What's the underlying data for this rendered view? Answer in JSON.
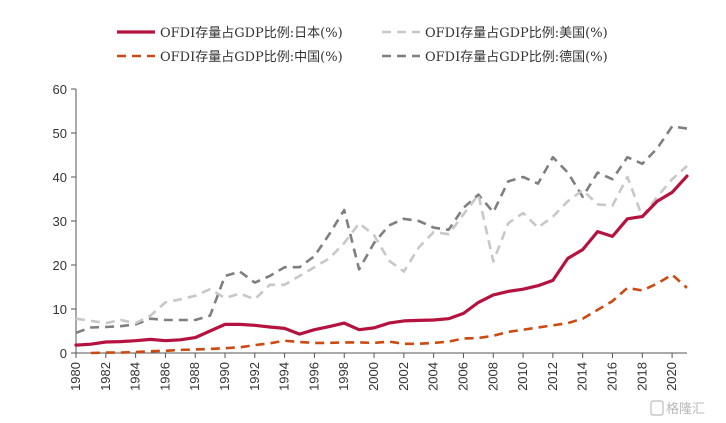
{
  "chart_data": {
    "type": "line",
    "title": "",
    "xlabel": "",
    "ylabel": "",
    "ylim": [
      0,
      60
    ],
    "yticks": [
      0,
      10,
      20,
      30,
      40,
      50,
      60
    ],
    "xlim": [
      1980,
      2021
    ],
    "xticks": [
      "1980",
      "1982",
      "1984",
      "1986",
      "1988",
      "1990",
      "1992",
      "1994",
      "1996",
      "1998",
      "2000",
      "2002",
      "2004",
      "2006",
      "2008",
      "2010",
      "2012",
      "2014",
      "2016",
      "2018",
      "2020"
    ],
    "grid": false,
    "legend_position": "top",
    "series": [
      {
        "name": "OFDI存量占GDP比例:日本(%)",
        "color": "#b5123f",
        "style": "solid",
        "x": [
          1980,
          1981,
          1982,
          1983,
          1984,
          1985,
          1986,
          1987,
          1988,
          1989,
          1990,
          1991,
          1992,
          1993,
          1994,
          1995,
          1996,
          1997,
          1998,
          1999,
          2000,
          2001,
          2002,
          2003,
          2004,
          2005,
          2006,
          2007,
          2008,
          2009,
          2010,
          2011,
          2012,
          2013,
          2014,
          2015,
          2016,
          2017,
          2018,
          2019,
          2020,
          2021
        ],
        "values": [
          1.8,
          2.0,
          2.5,
          2.6,
          2.8,
          3.1,
          2.8,
          3.0,
          3.5,
          5.0,
          6.5,
          6.5,
          6.3,
          5.9,
          5.6,
          4.3,
          5.3,
          6.0,
          6.8,
          5.3,
          5.7,
          6.8,
          7.3,
          7.4,
          7.5,
          7.8,
          9.0,
          11.5,
          13.2,
          14.0,
          14.5,
          15.3,
          16.5,
          21.5,
          23.5,
          27.6,
          26.5,
          30.5,
          31.0,
          34.5,
          36.5,
          40.2
        ]
      },
      {
        "name": "OFDI存量占GDP比例:美国(%)",
        "color": "#c8c8c8",
        "style": "dashed",
        "x": [
          1980,
          1981,
          1982,
          1983,
          1984,
          1985,
          1986,
          1987,
          1988,
          1989,
          1990,
          1991,
          1992,
          1993,
          1994,
          1995,
          1996,
          1997,
          1998,
          1999,
          2000,
          2001,
          2002,
          2003,
          2004,
          2005,
          2006,
          2007,
          2008,
          2009,
          2010,
          2011,
          2012,
          2013,
          2014,
          2015,
          2016,
          2017,
          2018,
          2019,
          2020,
          2021
        ],
        "values": [
          7.8,
          7.3,
          6.8,
          7.5,
          6.8,
          8.5,
          11.5,
          12.2,
          13.0,
          14.5,
          12.5,
          13.5,
          12.2,
          15.5,
          15.5,
          17.5,
          19.5,
          21.5,
          25.0,
          29.5,
          26.8,
          21.0,
          18.5,
          24.0,
          27.5,
          27.0,
          31.5,
          36.0,
          20.8,
          29.5,
          31.8,
          28.5,
          31.0,
          34.5,
          37.0,
          33.8,
          33.5,
          40.0,
          31.0,
          35.5,
          39.5,
          42.5
        ]
      },
      {
        "name": "OFDI存量占GDP比例:中国(%)",
        "color": "#cc4a12",
        "style": "dashed",
        "x": [
          1981,
          1982,
          1983,
          1984,
          1985,
          1986,
          1987,
          1988,
          1989,
          1990,
          1991,
          1992,
          1993,
          1994,
          1995,
          1996,
          1997,
          1998,
          1999,
          2000,
          2001,
          2002,
          2003,
          2004,
          2005,
          2006,
          2007,
          2008,
          2009,
          2010,
          2011,
          2012,
          2013,
          2014,
          2015,
          2016,
          2017,
          2018,
          2019,
          2020,
          2021
        ],
        "values": [
          0.0,
          0.1,
          0.1,
          0.2,
          0.4,
          0.5,
          0.7,
          0.8,
          0.9,
          1.1,
          1.3,
          1.8,
          2.2,
          2.8,
          2.5,
          2.3,
          2.3,
          2.4,
          2.4,
          2.3,
          2.6,
          2.1,
          2.1,
          2.3,
          2.6,
          3.3,
          3.4,
          3.9,
          4.8,
          5.3,
          5.8,
          6.3,
          6.8,
          7.8,
          9.8,
          11.8,
          14.8,
          14.2,
          15.8,
          17.8,
          14.8
        ]
      },
      {
        "name": "OFDI存量占GDP比例:德国(%)",
        "color": "#7f7f7f",
        "style": "dashed",
        "x": [
          1980,
          1981,
          1982,
          1983,
          1984,
          1985,
          1986,
          1987,
          1988,
          1989,
          1990,
          1991,
          1992,
          1993,
          1994,
          1995,
          1996,
          1997,
          1998,
          1999,
          2000,
          2001,
          2002,
          2003,
          2004,
          2005,
          2006,
          2007,
          2008,
          2009,
          2010,
          2011,
          2012,
          2013,
          2014,
          2015,
          2016,
          2017,
          2018,
          2019,
          2020,
          2021
        ],
        "values": [
          4.6,
          5.8,
          5.9,
          6.1,
          6.5,
          7.8,
          7.5,
          7.5,
          7.5,
          8.5,
          17.5,
          18.5,
          16.0,
          17.5,
          19.5,
          19.5,
          22.0,
          27.0,
          32.5,
          19.0,
          25.0,
          29.0,
          30.5,
          30.0,
          28.5,
          28.0,
          33.0,
          36.0,
          32.0,
          39.0,
          40.0,
          38.5,
          44.5,
          41.0,
          35.5,
          41.0,
          39.5,
          44.5,
          43.0,
          46.5,
          51.5,
          51.0
        ]
      }
    ]
  },
  "watermark": {
    "text": "格隆汇",
    "icon": "watermark-logo-icon"
  }
}
